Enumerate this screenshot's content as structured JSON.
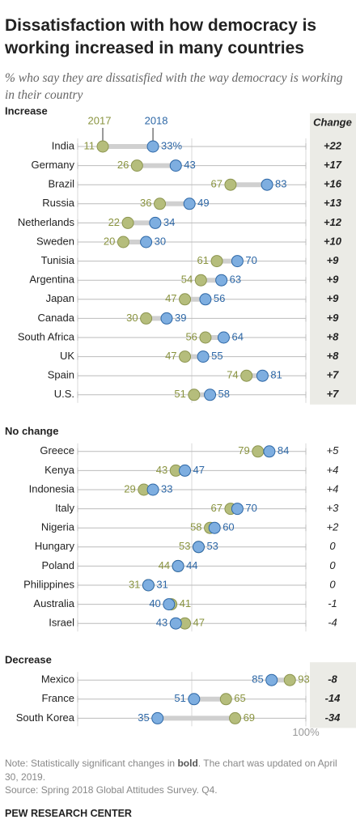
{
  "chart_data": {
    "type": "dumbbell",
    "title": "Dissatisfaction with how democracy is working increased in many countries",
    "subtitle": "% who say they are dissatisfied with the way democracy is working in their country",
    "change_header": "Change",
    "series": [
      {
        "name": "2017",
        "color": "#b5bd7c"
      },
      {
        "name": "2018",
        "color": "#7eaee0"
      }
    ],
    "xlim": [
      0,
      100
    ],
    "xticks": [
      {
        "value": 0,
        "label": null
      },
      {
        "value": 50,
        "label": null
      },
      {
        "value": 100,
        "label": "100%"
      }
    ],
    "groups": [
      {
        "name": "Increase",
        "bold": true,
        "rows": [
          {
            "label": "India",
            "values": [
              11,
              33
            ],
            "value_labels": [
              "11",
              "33%"
            ],
            "change": 22,
            "change_label": "+22"
          },
          {
            "label": "Germany",
            "values": [
              26,
              43
            ],
            "change": 17,
            "change_label": "+17"
          },
          {
            "label": "Brazil",
            "values": [
              67,
              83
            ],
            "change": 16,
            "change_label": "+16"
          },
          {
            "label": "Russia",
            "values": [
              36,
              49
            ],
            "change": 13,
            "change_label": "+13"
          },
          {
            "label": "Netherlands",
            "values": [
              22,
              34
            ],
            "change": 12,
            "change_label": "+12"
          },
          {
            "label": "Sweden",
            "values": [
              20,
              30
            ],
            "change": 10,
            "change_label": "+10"
          },
          {
            "label": "Tunisia",
            "values": [
              61,
              70
            ],
            "change": 9,
            "change_label": "+9"
          },
          {
            "label": "Argentina",
            "values": [
              54,
              63
            ],
            "change": 9,
            "change_label": "+9"
          },
          {
            "label": "Japan",
            "values": [
              47,
              56
            ],
            "change": 9,
            "change_label": "+9"
          },
          {
            "label": "Canada",
            "values": [
              30,
              39
            ],
            "change": 9,
            "change_label": "+9"
          },
          {
            "label": "South Africa",
            "values": [
              56,
              64
            ],
            "change": 8,
            "change_label": "+8"
          },
          {
            "label": "UK",
            "values": [
              47,
              55
            ],
            "change": 8,
            "change_label": "+8"
          },
          {
            "label": "Spain",
            "values": [
              74,
              81
            ],
            "change": 7,
            "change_label": "+7"
          },
          {
            "label": "U.S.",
            "values": [
              51,
              58
            ],
            "change": 7,
            "change_label": "+7"
          }
        ]
      },
      {
        "name": "No change",
        "bold": false,
        "rows": [
          {
            "label": "Greece",
            "values": [
              79,
              84
            ],
            "change": 5,
            "change_label": "+5"
          },
          {
            "label": "Kenya",
            "values": [
              43,
              47
            ],
            "change": 4,
            "change_label": "+4"
          },
          {
            "label": "Indonesia",
            "values": [
              29,
              33
            ],
            "change": 4,
            "change_label": "+4"
          },
          {
            "label": "Italy",
            "values": [
              67,
              70
            ],
            "change": 3,
            "change_label": "+3"
          },
          {
            "label": "Nigeria",
            "values": [
              58,
              60
            ],
            "change": 2,
            "change_label": "+2"
          },
          {
            "label": "Hungary",
            "values": [
              53,
              53
            ],
            "change": 0
          },
          {
            "label": "Poland",
            "values": [
              44,
              44
            ],
            "change": 0
          },
          {
            "label": "Philippines",
            "values": [
              31,
              31
            ],
            "change": 0
          },
          {
            "label": "Australia",
            "values": [
              41,
              40
            ],
            "change": -1
          },
          {
            "label": "Israel",
            "values": [
              47,
              43
            ],
            "change": -4
          }
        ]
      },
      {
        "name": "Decrease",
        "bold": true,
        "rows": [
          {
            "label": "Mexico",
            "values": [
              93,
              85
            ],
            "change": -8
          },
          {
            "label": "France",
            "values": [
              65,
              51
            ],
            "change": -14
          },
          {
            "label": "South Korea",
            "values": [
              69,
              35
            ],
            "change": -34
          }
        ]
      }
    ]
  },
  "footer": {
    "note_before": "Note: Statistically significant changes in ",
    "note_bold": "bold",
    "note_after": ". The chart was updated on April 30, 2019.",
    "source": "Source: Spring 2018 Global Attitudes Survey. Q4.",
    "credit": "PEW RESEARCH CENTER"
  }
}
